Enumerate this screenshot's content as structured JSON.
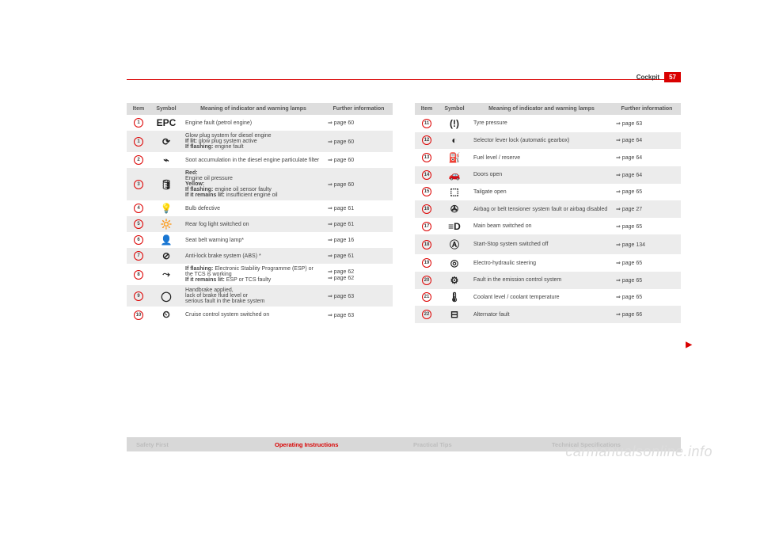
{
  "page": {
    "section": "Cockpit",
    "number": "57"
  },
  "headers": {
    "item": "Item",
    "symbol": "Symbol",
    "meaning": "Meaning of indicator and warning lamps",
    "info": "Further information"
  },
  "left": [
    {
      "n": "1",
      "sym": "EPC",
      "mean": "Engine fault (petrol engine)",
      "info": "⇒ page 60"
    },
    {
      "n": "1",
      "sym": "⟳",
      "mean": "Glow plug system for diesel engine<br><b>If lit:</b> glow plug system active<br><b>If flashing:</b> engine fault",
      "info": "⇒ page 60"
    },
    {
      "n": "2",
      "sym": "⌁",
      "mean": "Soot accumulation in the diesel engine particulate filter",
      "info": "⇒ page 60"
    },
    {
      "n": "3",
      "sym": "🛢",
      "mean": "<b>Red:</b><br>Engine oil pressure<br><b>Yellow:</b><br><b>If flashing:</b> engine oil sensor faulty<br><b>If it remains lit:</b> insufficient engine oil",
      "info": "⇒ page 60"
    },
    {
      "n": "4",
      "sym": "💡",
      "mean": "Bulb defective",
      "info": "⇒ page 61"
    },
    {
      "n": "5",
      "sym": "🔆",
      "mean": "Rear fog light switched on",
      "info": "⇒ page 61"
    },
    {
      "n": "6",
      "sym": "👤",
      "mean": "Seat belt warning lamp*",
      "info": "⇒ page 16"
    },
    {
      "n": "7",
      "sym": "⊘",
      "mean": "Anti-lock brake system (ABS) *",
      "info": "⇒ page 61"
    },
    {
      "n": "8",
      "sym": "⤳",
      "mean": "<b>If flashing:</b> Electronic Stability Programme (ESP) or the TCS is working<br><b>If it remains lit:</b> ESP or TCS faulty",
      "info": "⇒ page 62<br>⇒ page 62"
    },
    {
      "n": "9",
      "sym": "◯",
      "mean": "Handbrake applied,<br>lack of brake fluid level or<br>serious fault in the brake system",
      "info": "⇒ page 63"
    },
    {
      "n": "10",
      "sym": "⏲",
      "mean": "Cruise control system switched on",
      "info": "⇒ page 63"
    }
  ],
  "right": [
    {
      "n": "11",
      "sym": "(!)",
      "mean": "Tyre pressure",
      "info": "⇒ page 63"
    },
    {
      "n": "12",
      "sym": "◐",
      "mean": "Selector lever lock (automatic gearbox)",
      "info": "⇒ page 64"
    },
    {
      "n": "13",
      "sym": "⛽",
      "mean": "Fuel level / reserve",
      "info": "⇒ page 64"
    },
    {
      "n": "14",
      "sym": "🚗",
      "mean": "Doors open",
      "info": "⇒ page 64"
    },
    {
      "n": "15",
      "sym": "⬚",
      "mean": "Tailgate open",
      "info": "⇒ page 65"
    },
    {
      "n": "16",
      "sym": "✇",
      "mean": "Airbag or belt tensioner system fault or airbag disabled",
      "info": "⇒ page 27"
    },
    {
      "n": "17",
      "sym": "≡D",
      "mean": "Main beam switched on",
      "info": "⇒ page 65"
    },
    {
      "n": "18",
      "sym": "Ⓐ",
      "mean": "Start-Stop system switched off",
      "info": "⇒ page 134"
    },
    {
      "n": "19",
      "sym": "◎",
      "mean": "Electro-hydraulic steering",
      "info": "⇒ page 65"
    },
    {
      "n": "20",
      "sym": "⚙",
      "mean": "Fault in the emission control system",
      "info": "⇒ page 65"
    },
    {
      "n": "21",
      "sym": "🌡",
      "mean": "Coolant level / coolant temperature",
      "info": "⇒ page 65"
    },
    {
      "n": "22",
      "sym": "⊟",
      "mean": "Alternator fault",
      "info": "⇒ page 66"
    }
  ],
  "tabs": [
    "Safety First",
    "Operating Instructions",
    "Practical Tips",
    "Technical Specifications"
  ],
  "watermark": "carmanualsonline.info",
  "colors": {
    "accent": "#d90000",
    "shade": "#ececec",
    "thead": "#dedede",
    "footer": "#d8d8d8"
  }
}
